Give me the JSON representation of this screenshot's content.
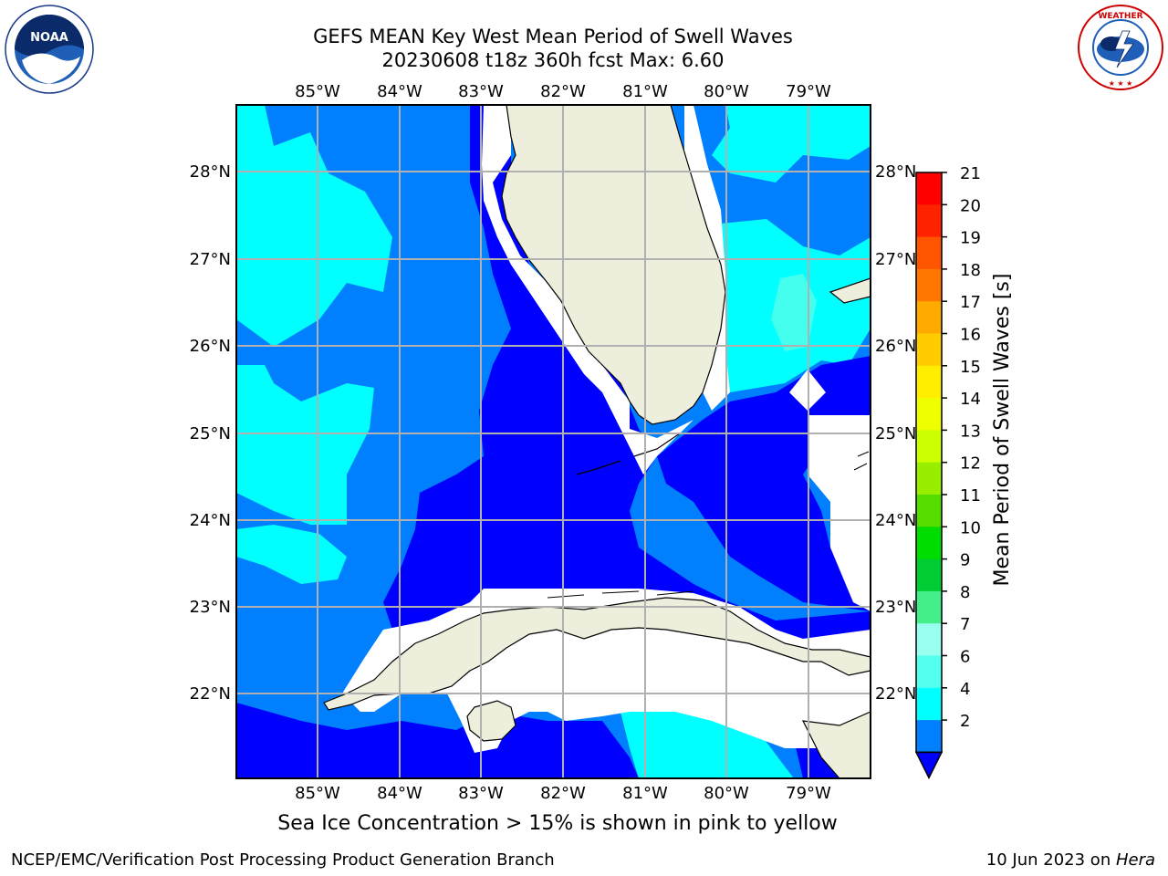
{
  "header": {
    "title_line1": "GEFS MEAN Key West Mean Period of Swell Waves",
    "title_line2": "20230608 t18z 360h fcst   Max: 6.60"
  },
  "logos": {
    "left": "NOAA",
    "right": "NATIONAL WEATHER SERVICE"
  },
  "map": {
    "lon_labels": [
      "85°W",
      "84°W",
      "83°W",
      "82°W",
      "81°W",
      "80°W",
      "79°W"
    ],
    "lat_labels": [
      "28°N",
      "27°N",
      "26°N",
      "25°N",
      "24°N",
      "23°N",
      "22°N"
    ],
    "colors": {
      "land": "#eeeedd",
      "grid": "#b0b0b0"
    }
  },
  "colorbar": {
    "label": "Mean Period of Swell Waves [s]",
    "ticks": [
      "21",
      "20",
      "19",
      "18",
      "17",
      "16",
      "15",
      "14",
      "13",
      "12",
      "11",
      "10",
      "9",
      "8",
      "7",
      "6",
      "4",
      "2"
    ],
    "colors": [
      "#ff0000",
      "#ff2200",
      "#ff5500",
      "#ff7700",
      "#ffaa00",
      "#ffcc00",
      "#ffee00",
      "#eeff00",
      "#ccff00",
      "#99ee00",
      "#55dd00",
      "#00dd00",
      "#00cc33",
      "#44ee88",
      "#99ffee",
      "#55ffee",
      "#00ffff",
      "#0080ff",
      "#0000ff"
    ]
  },
  "caption": "Sea Ice Concentration > 15% is shown in pink to yellow",
  "footer": {
    "left": "NCEP/EMC/Verification Post Processing Product Generation Branch",
    "right_date": "10 Jun 2023 on ",
    "right_system": "Hera"
  }
}
